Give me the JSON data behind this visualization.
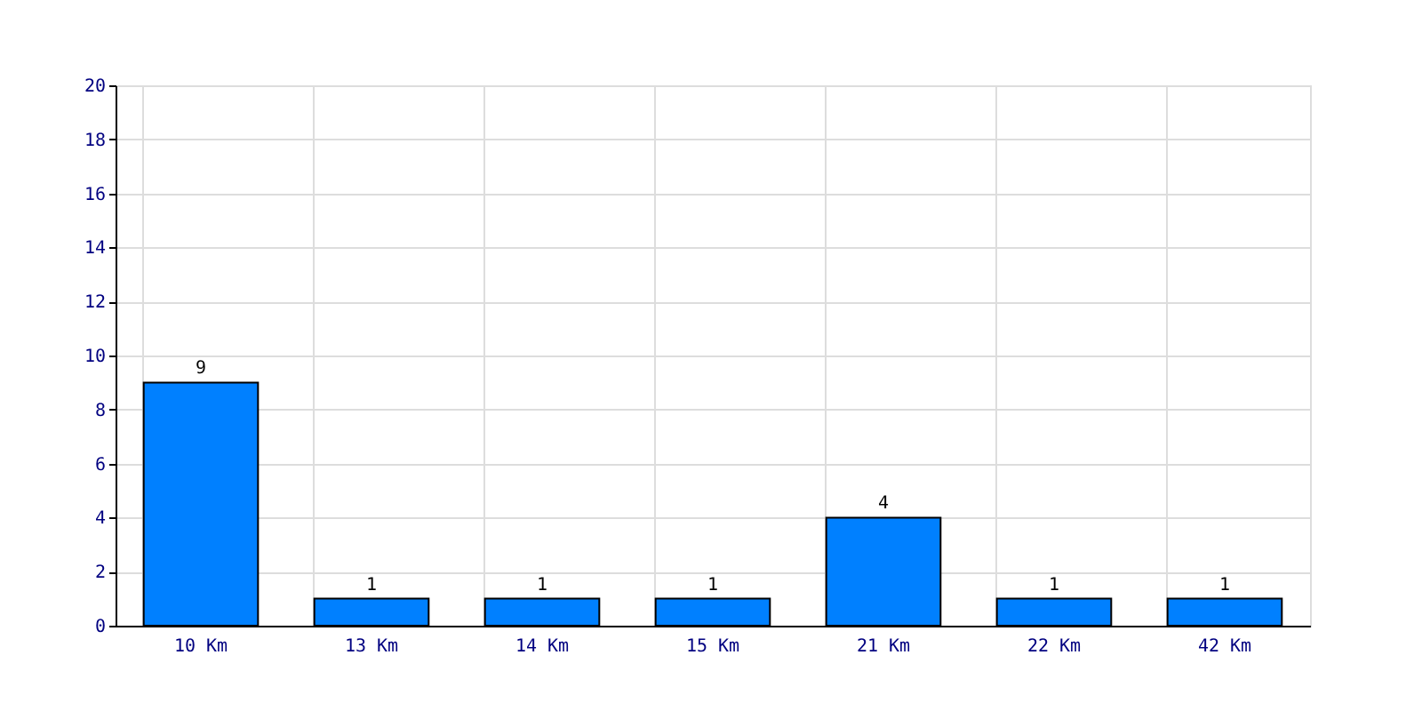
{
  "chart_data": {
    "type": "bar",
    "categories": [
      "10 Km",
      "13 Km",
      "14 Km",
      "15 Km",
      "21 Km",
      "22 Km",
      "42 Km"
    ],
    "values": [
      9,
      1,
      1,
      1,
      4,
      1,
      1
    ],
    "color": "#0080ff",
    "ylim": [
      0,
      20
    ],
    "yticks": [
      0,
      2,
      4,
      6,
      8,
      10,
      12,
      14,
      16,
      18,
      20
    ],
    "grid": true,
    "data_labels": true
  }
}
